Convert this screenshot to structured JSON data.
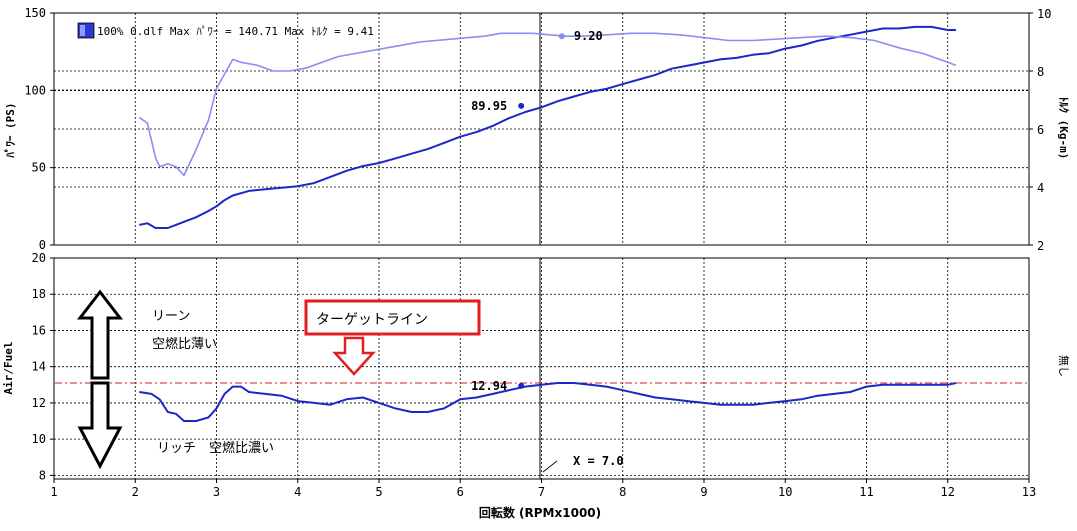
{
  "header": {
    "legend_text": "100% 0.dlf Max ﾊﾟﾜｰ = 140.71  Max ﾄﾙｸ = 9.41",
    "legend_color": "#2a3acc"
  },
  "colors": {
    "power": "#1a28c8",
    "torque": "#8a8ef0",
    "afr": "#1a28c8",
    "target_line": "#cc2222",
    "annotation_box": "#e02020",
    "arrow_stroke": "#000000"
  },
  "annotations": {
    "power_marker_label": "89.95",
    "torque_marker_label": "9.20",
    "afr_marker_label": "12.94",
    "cursor_label": "X = 7.0",
    "target_label": "ターゲットライン",
    "lean_label": "リーン",
    "lean_sub": "空燃比薄い",
    "rich_label": "リッチ　空燃比濃い"
  },
  "chart_data": [
    {
      "type": "line",
      "title": "",
      "xlabel": "回転数 (RPMx1000)",
      "ylabel": "ﾊﾟﾜｰ (PS)",
      "y2label": "ﾄﾙｸ (Kg-m)",
      "xlim": [
        1,
        13
      ],
      "ylim": [
        0,
        150
      ],
      "y2lim": [
        2,
        10
      ],
      "x_ticks": [
        "1",
        "2",
        "3",
        "4",
        "5",
        "6",
        "7",
        "8",
        "9",
        "10",
        "11",
        "12",
        "13"
      ],
      "y_ticks": [
        "0",
        "50",
        "100",
        "150"
      ],
      "y2_ticks": [
        "2",
        "4",
        "6",
        "8",
        "10"
      ],
      "cursor_x": 7.0,
      "series": [
        {
          "name": "ﾊﾟﾜｰ",
          "axis": "left",
          "x": [
            2.05,
            2.15,
            2.25,
            2.4,
            2.5,
            2.6,
            2.75,
            2.9,
            3.0,
            3.1,
            3.2,
            3.4,
            3.6,
            3.8,
            4.0,
            4.2,
            4.4,
            4.6,
            4.8,
            5.0,
            5.2,
            5.4,
            5.6,
            5.8,
            6.0,
            6.2,
            6.4,
            6.6,
            6.8,
            7.0,
            7.2,
            7.4,
            7.6,
            7.8,
            8.0,
            8.2,
            8.4,
            8.6,
            8.8,
            9.0,
            9.2,
            9.4,
            9.6,
            9.8,
            10.0,
            10.2,
            10.4,
            10.6,
            10.8,
            11.0,
            11.2,
            11.4,
            11.6,
            11.8,
            12.0,
            12.1
          ],
          "values": [
            13,
            14,
            11,
            11,
            13,
            15,
            18,
            22,
            25,
            29,
            32,
            35,
            36,
            37,
            38,
            40,
            44,
            48,
            51,
            53,
            56,
            59,
            62,
            66,
            70,
            73,
            77,
            82,
            86,
            89,
            93,
            96,
            99,
            101,
            104,
            107,
            110,
            114,
            116,
            118,
            120,
            121,
            123,
            124,
            127,
            129,
            132,
            134,
            136,
            138,
            140,
            140,
            141,
            141,
            139,
            139
          ]
        },
        {
          "name": "ﾄﾙｸ",
          "axis": "right",
          "x": [
            2.05,
            2.15,
            2.25,
            2.3,
            2.4,
            2.5,
            2.6,
            2.75,
            2.9,
            3.0,
            3.1,
            3.2,
            3.3,
            3.5,
            3.7,
            3.9,
            4.1,
            4.3,
            4.5,
            4.7,
            4.9,
            5.1,
            5.3,
            5.5,
            5.7,
            5.9,
            6.1,
            6.3,
            6.5,
            6.7,
            6.9,
            7.1,
            7.3,
            7.5,
            7.8,
            8.1,
            8.4,
            8.7,
            9.0,
            9.3,
            9.6,
            9.9,
            10.2,
            10.5,
            10.8,
            11.1,
            11.4,
            11.7,
            12.0,
            12.1
          ],
          "values": [
            6.4,
            6.2,
            5.0,
            4.7,
            4.8,
            4.7,
            4.4,
            5.3,
            6.3,
            7.4,
            7.9,
            8.4,
            8.3,
            8.2,
            8.0,
            8.0,
            8.1,
            8.3,
            8.5,
            8.6,
            8.7,
            8.8,
            8.9,
            9.0,
            9.05,
            9.1,
            9.15,
            9.2,
            9.3,
            9.3,
            9.3,
            9.25,
            9.2,
            9.2,
            9.25,
            9.3,
            9.3,
            9.25,
            9.15,
            9.05,
            9.05,
            9.1,
            9.15,
            9.2,
            9.15,
            9.05,
            8.8,
            8.6,
            8.3,
            8.2
          ]
        }
      ],
      "markers": [
        {
          "series": "ﾊﾟﾜｰ",
          "x": 6.75,
          "y": 89.95,
          "label": "89.95"
        },
        {
          "series": "ﾄﾙｸ",
          "x": 7.25,
          "y": 9.2,
          "label": "9.20"
        }
      ]
    },
    {
      "type": "line",
      "title": "",
      "xlabel": "回転数 (RPMx1000)",
      "ylabel": "Air/Fuel",
      "y2label": "無し",
      "xlim": [
        1,
        13
      ],
      "ylim": [
        7.8,
        20
      ],
      "x_ticks": [
        "1",
        "2",
        "3",
        "4",
        "5",
        "6",
        "7",
        "8",
        "9",
        "10",
        "11",
        "12",
        "13"
      ],
      "y_ticks": [
        "8",
        "10",
        "12",
        "14",
        "16",
        "18",
        "20"
      ],
      "target_afr": 13.1,
      "cursor_x": 7.0,
      "series": [
        {
          "name": "Air/Fuel",
          "x": [
            2.05,
            2.2,
            2.3,
            2.4,
            2.5,
            2.6,
            2.75,
            2.9,
            3.0,
            3.1,
            3.2,
            3.3,
            3.4,
            3.6,
            3.8,
            4.0,
            4.2,
            4.4,
            4.6,
            4.8,
            5.0,
            5.2,
            5.4,
            5.6,
            5.8,
            6.0,
            6.2,
            6.4,
            6.6,
            6.8,
            7.0,
            7.2,
            7.4,
            7.6,
            7.8,
            8.0,
            8.2,
            8.4,
            8.6,
            8.8,
            9.0,
            9.2,
            9.4,
            9.6,
            9.8,
            10.0,
            10.2,
            10.4,
            10.6,
            10.8,
            11.0,
            11.2,
            11.4,
            11.6,
            11.8,
            12.0,
            12.1
          ],
          "values": [
            12.6,
            12.5,
            12.2,
            11.5,
            11.4,
            11.0,
            11.0,
            11.2,
            11.7,
            12.5,
            12.9,
            12.9,
            12.6,
            12.5,
            12.4,
            12.1,
            12.0,
            11.9,
            12.2,
            12.3,
            12.0,
            11.7,
            11.5,
            11.5,
            11.7,
            12.2,
            12.3,
            12.5,
            12.7,
            12.9,
            13.0,
            13.1,
            13.1,
            13.0,
            12.9,
            12.7,
            12.5,
            12.3,
            12.2,
            12.1,
            12.0,
            11.9,
            11.9,
            11.9,
            12.0,
            12.1,
            12.2,
            12.4,
            12.5,
            12.6,
            12.9,
            13.0,
            13.0,
            13.0,
            13.0,
            13.0,
            13.1
          ]
        }
      ],
      "markers": [
        {
          "series": "Air/Fuel",
          "x": 6.75,
          "y": 12.94,
          "label": "12.94"
        }
      ]
    }
  ]
}
